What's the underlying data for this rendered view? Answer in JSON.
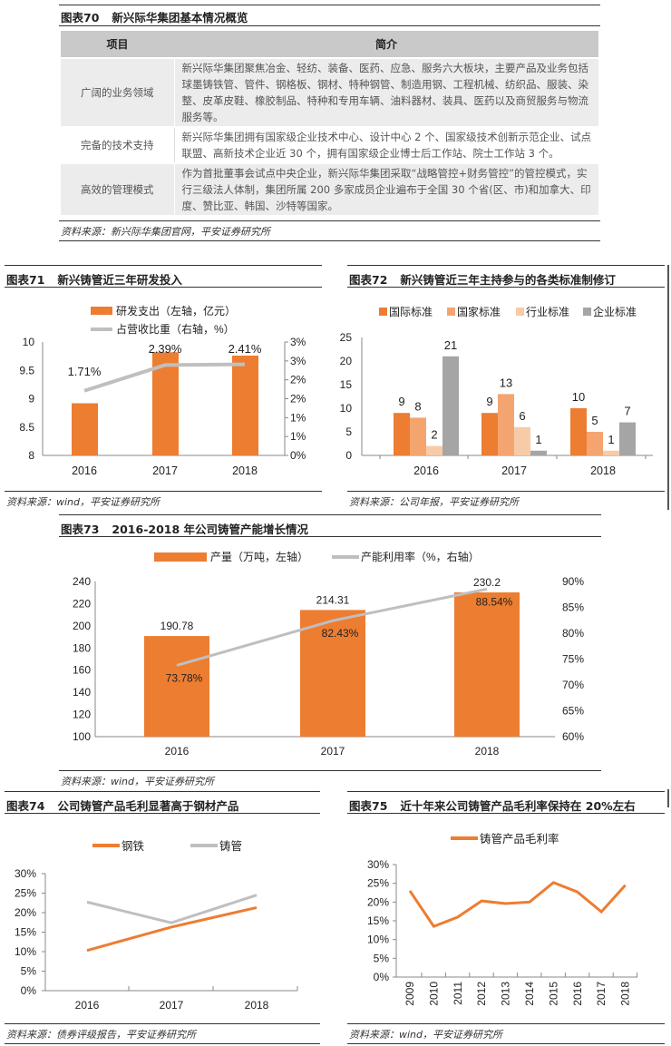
{
  "table_section": {
    "number": "图表70",
    "title": "新兴际华集团基本情况概览",
    "headers": [
      "项目",
      "简介"
    ],
    "rows": [
      {
        "item": "广阔的业务领域",
        "desc": "新兴际华集团聚焦冶金、轻纺、装备、医药、应急、服务六大板块，主要产品及业务包括球墨铸铁管、管件、钢格板、钢材、特种钢管、制造用钢、工程机械、纺织品、服装、染整、皮革皮鞋、橡胶制品、特种和专用车辆、油料器材、装具、医药以及商贸服务与物流服务等。"
      },
      {
        "item": "完备的技术支持",
        "desc": "新兴际华集团拥有国家级企业技术中心、设计中心 2 个、国家级技术创新示范企业、试点联盟、高新技术企业近 30 个，拥有国家级企业博士后工作站、院士工作站 3 个。"
      },
      {
        "item": "高效的管理模式",
        "desc": "作为首批董事会试点中央企业，新兴际华集团采取“战略管控+财务管控”的管控模式，实行三级法人体制，集团所属 200 多家成员企业遍布于全国 30 个省(区、市)和加拿大、印度、赞比亚、韩国、沙特等国家。"
      }
    ],
    "source": "资料来源：新兴际华集团官网，平安证券研究所"
  },
  "colors": {
    "orange": "#ed7d31",
    "orange2": "#f4a56f",
    "orange3": "#f8cba8",
    "gray": "#a5a5a5",
    "linegray": "#bfbfbf"
  },
  "chart_data": [
    {
      "number": "图表71",
      "title": "新兴铸管近三年研发投入",
      "type": "bar+line",
      "categories": [
        "2016",
        "2017",
        "2018"
      ],
      "series": [
        {
          "name": "研发支出（左轴，亿元）",
          "type": "bar",
          "axis": "left",
          "values": [
            8.92,
            9.82,
            9.76
          ]
        },
        {
          "name": "占营收比重（右轴，%）",
          "type": "line",
          "axis": "right",
          "values": [
            1.71,
            2.39,
            2.41
          ],
          "labels": [
            "1.71%",
            "2.39%",
            "2.41%"
          ]
        }
      ],
      "ylim": [
        8,
        10
      ],
      "yticks": [
        "8",
        "8.5",
        "9",
        "9.5",
        "10"
      ],
      "y2lim": [
        0,
        3
      ],
      "y2ticks": [
        "0%",
        "1%",
        "1%",
        "2%",
        "2%",
        "3%",
        "3%"
      ],
      "legend": "top",
      "source": "资料来源：wind，平安证券研究所"
    },
    {
      "number": "图表72",
      "title": "新兴铸管近三年主持参与的各类标准制修订",
      "type": "bar",
      "categories": [
        "2016",
        "2017",
        "2018"
      ],
      "series": [
        {
          "name": "国际标准",
          "values": [
            9,
            9,
            10
          ]
        },
        {
          "name": "国家标准",
          "values": [
            8,
            13,
            5
          ]
        },
        {
          "name": "行业标准",
          "values": [
            2,
            6,
            1
          ]
        },
        {
          "name": "企业标准",
          "values": [
            21,
            1,
            7
          ]
        }
      ],
      "ylim": [
        0,
        25
      ],
      "yticks": [
        "0",
        "5",
        "10",
        "15",
        "20",
        "25"
      ],
      "legend": "top",
      "source": "资料来源：公司年报，平安证券研究所"
    },
    {
      "number": "图表73",
      "title": "2016-2018 年公司铸管产能增长情况",
      "type": "bar+line",
      "categories": [
        "2016",
        "2017",
        "2018"
      ],
      "series": [
        {
          "name": "产量（万吨，左轴）",
          "type": "bar",
          "axis": "left",
          "values": [
            190.78,
            214.31,
            230.2
          ],
          "labels": [
            "190.78",
            "214.31",
            "230.2"
          ]
        },
        {
          "name": "产能利用率（%，右轴）",
          "type": "line",
          "axis": "right",
          "values": [
            73.78,
            82.43,
            88.54
          ],
          "labels": [
            "73.78%",
            "82.43%",
            "88.54%"
          ]
        }
      ],
      "ylim": [
        100,
        240
      ],
      "yticks": [
        "100",
        "120",
        "140",
        "160",
        "180",
        "200",
        "220",
        "240"
      ],
      "y2lim": [
        60,
        90
      ],
      "y2ticks": [
        "60%",
        "65%",
        "70%",
        "75%",
        "80%",
        "85%",
        "90%"
      ],
      "legend": "top",
      "source": "资料来源：wind，平安证券研究所"
    },
    {
      "number": "图表74",
      "title": "公司铸管产品毛利显著高于钢材产品",
      "type": "line",
      "categories": [
        "2016",
        "2017",
        "2018"
      ],
      "series": [
        {
          "name": "钢铁",
          "values": [
            10.3,
            16.3,
            21.3
          ]
        },
        {
          "name": "铸管",
          "values": [
            22.7,
            17.4,
            24.5
          ]
        }
      ],
      "ylim": [
        0,
        30
      ],
      "yticks": [
        "0%",
        "5%",
        "10%",
        "15%",
        "20%",
        "25%",
        "30%"
      ],
      "legend": "top",
      "source": "资料来源：债券评级报告，平安证券研究所"
    },
    {
      "number": "图表75",
      "title": "近十年来公司铸管产品毛利率保持在 20%左右",
      "type": "line",
      "categories": [
        "2009",
        "2010",
        "2011",
        "2012",
        "2013",
        "2014",
        "2015",
        "2016",
        "2017",
        "2018"
      ],
      "series": [
        {
          "name": "铸管产品毛利率",
          "values": [
            23.0,
            13.5,
            16.0,
            20.3,
            19.6,
            20.0,
            25.2,
            22.7,
            17.4,
            24.5
          ]
        }
      ],
      "ylim": [
        0,
        30
      ],
      "yticks": [
        "0%",
        "5%",
        "10%",
        "15%",
        "20%",
        "25%",
        "30%"
      ],
      "legend": "top",
      "source": "资料来源：wind，平安证券研究所"
    }
  ]
}
